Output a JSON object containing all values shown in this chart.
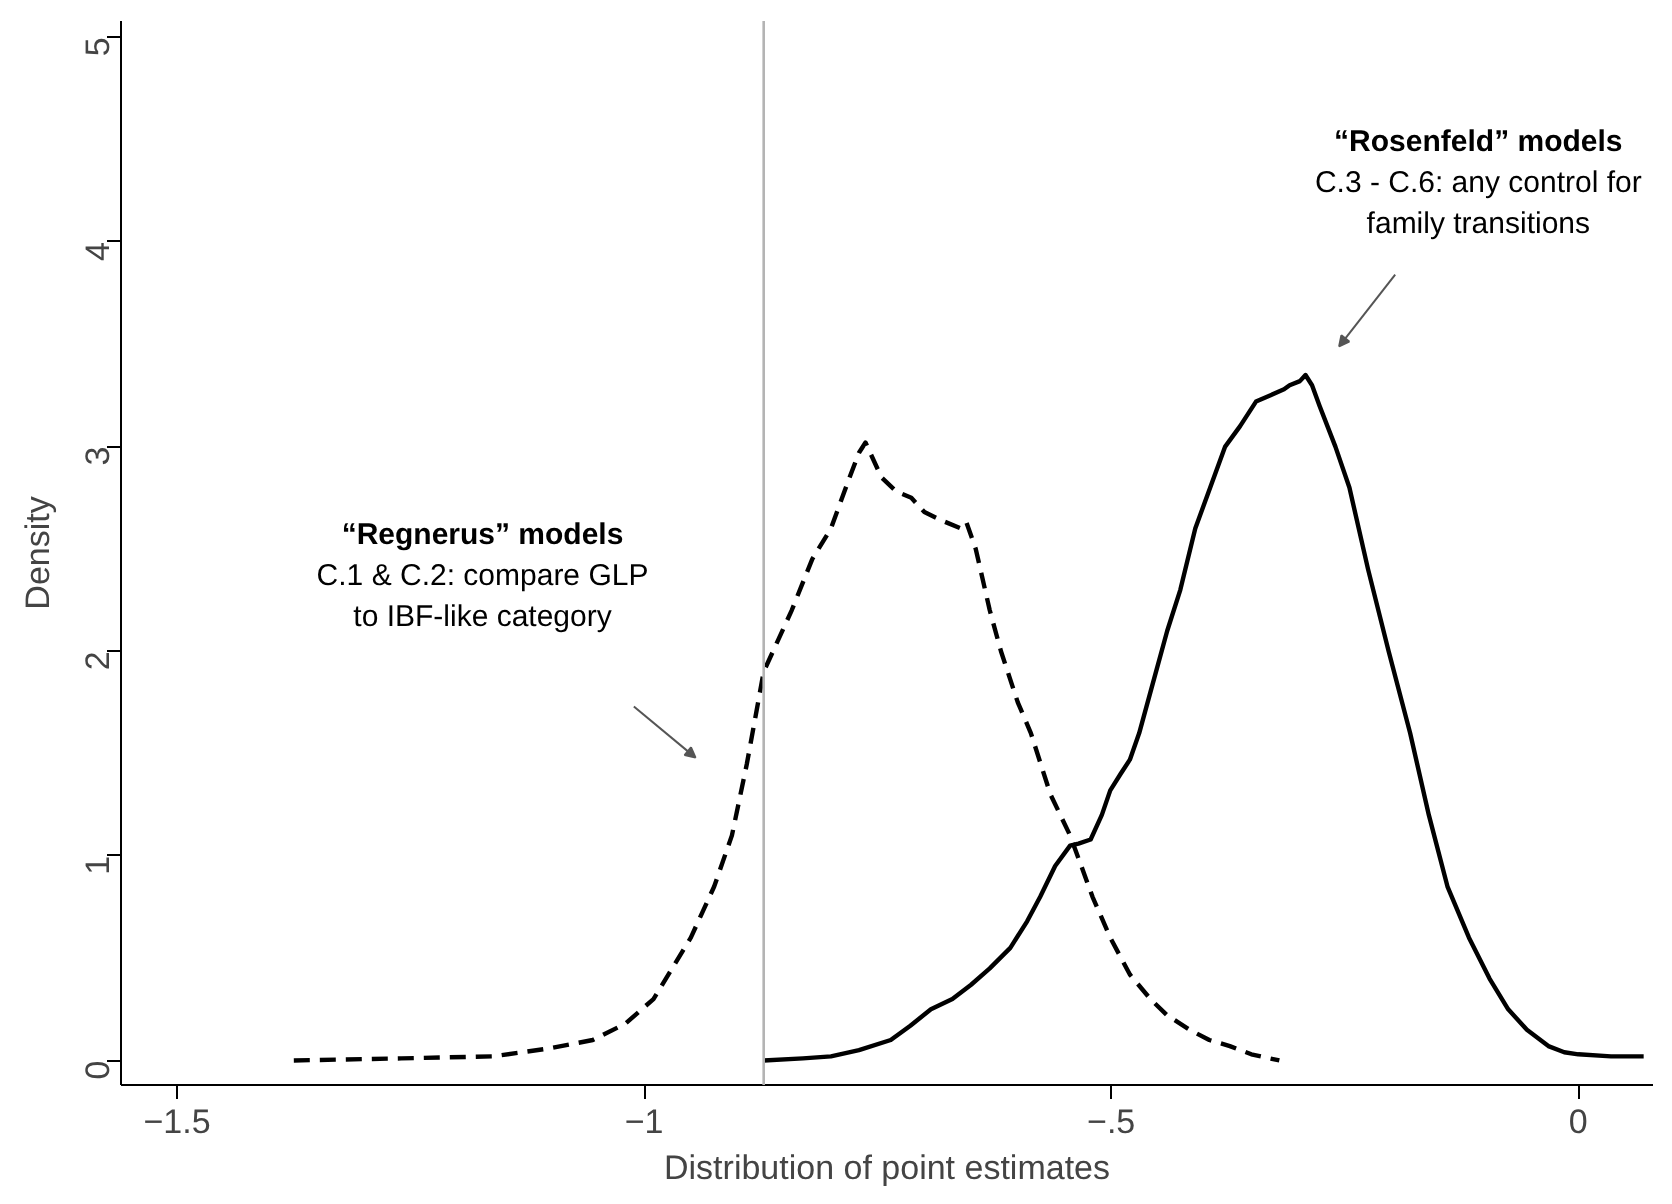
{
  "chart_data": {
    "type": "line",
    "xlabel": "Distribution of point estimates",
    "ylabel": "Density",
    "xlim": [
      -1.56,
      0.08
    ],
    "ylim": [
      -0.12,
      5.08
    ],
    "xticks": [
      {
        "value": -1.5,
        "label": "−1.5"
      },
      {
        "value": -1,
        "label": "−1"
      },
      {
        "value": -0.5,
        "label": "−.5"
      },
      {
        "value": 0,
        "label": "0"
      }
    ],
    "yticks": [
      0,
      1,
      2,
      3,
      4,
      5
    ],
    "grid": false,
    "marker": "none",
    "series": [
      {
        "color": "#000000",
        "line_style": "dashed",
        "x": [
          -1.375,
          -1.26,
          -1.162,
          -1.1,
          -1.055,
          -1.02,
          -0.99,
          -0.95,
          -0.925,
          -0.906,
          -0.89,
          -0.872,
          -0.842,
          -0.82,
          -0.8,
          -0.78,
          -0.77,
          -0.763,
          -0.746,
          -0.73,
          -0.714,
          -0.7,
          -0.682,
          -0.661,
          -0.655,
          -0.645,
          -0.63,
          -0.618,
          -0.6,
          -0.586,
          -0.565,
          -0.544,
          -0.52,
          -0.501,
          -0.48,
          -0.458,
          -0.44,
          -0.416,
          -0.395,
          -0.373,
          -0.35,
          -0.32
        ],
        "values": [
          0,
          0.01,
          0.02,
          0.06,
          0.1,
          0.18,
          0.3,
          0.6,
          0.85,
          1.1,
          1.45,
          1.9,
          2.2,
          2.45,
          2.6,
          2.85,
          2.97,
          3.02,
          2.85,
          2.78,
          2.75,
          2.68,
          2.64,
          2.6,
          2.63,
          2.5,
          2.2,
          2.0,
          1.75,
          1.6,
          1.3,
          1.1,
          0.8,
          0.6,
          0.42,
          0.3,
          0.22,
          0.15,
          0.1,
          0.07,
          0.03,
          0.0
        ]
      },
      {
        "color": "#000000",
        "line_style": "solid",
        "x": [
          -0.872,
          -0.83,
          -0.8,
          -0.77,
          -0.736,
          -0.715,
          -0.693,
          -0.67,
          -0.65,
          -0.63,
          -0.608,
          -0.59,
          -0.576,
          -0.56,
          -0.544,
          -0.535,
          -0.522,
          -0.51,
          -0.501,
          -0.49,
          -0.48,
          -0.47,
          -0.458,
          -0.44,
          -0.426,
          -0.41,
          -0.394,
          -0.378,
          -0.362,
          -0.345,
          -0.33,
          -0.315,
          -0.309,
          -0.298,
          -0.292,
          -0.285,
          -0.277,
          -0.26,
          -0.245,
          -0.225,
          -0.203,
          -0.18,
          -0.16,
          -0.14,
          -0.117,
          -0.095,
          -0.075,
          -0.055,
          -0.032,
          -0.015,
          0,
          0.035,
          0.07
        ],
        "values": [
          0,
          0.01,
          0.02,
          0.05,
          0.1,
          0.17,
          0.25,
          0.3,
          0.37,
          0.45,
          0.55,
          0.68,
          0.8,
          0.95,
          1.05,
          1.06,
          1.08,
          1.2,
          1.32,
          1.4,
          1.47,
          1.6,
          1.8,
          2.1,
          2.3,
          2.6,
          2.8,
          3.0,
          3.1,
          3.22,
          3.25,
          3.28,
          3.3,
          3.32,
          3.35,
          3.3,
          3.2,
          3.0,
          2.8,
          2.4,
          2.0,
          1.6,
          1.2,
          0.85,
          0.6,
          0.4,
          0.25,
          0.15,
          0.07,
          0.04,
          0.03,
          0.02,
          0.02
        ]
      }
    ],
    "ref_lines": [
      {
        "axis": "x",
        "value": -0.872,
        "color": "#b4b4b4"
      }
    ],
    "annotations": [
      "“Regnerus” models\nC.1 & C.2: compare GLP\nto IBF-like category",
      "“Rosenfeld” models\nC.3 - C.6: any control for\nfamily transitions"
    ]
  }
}
